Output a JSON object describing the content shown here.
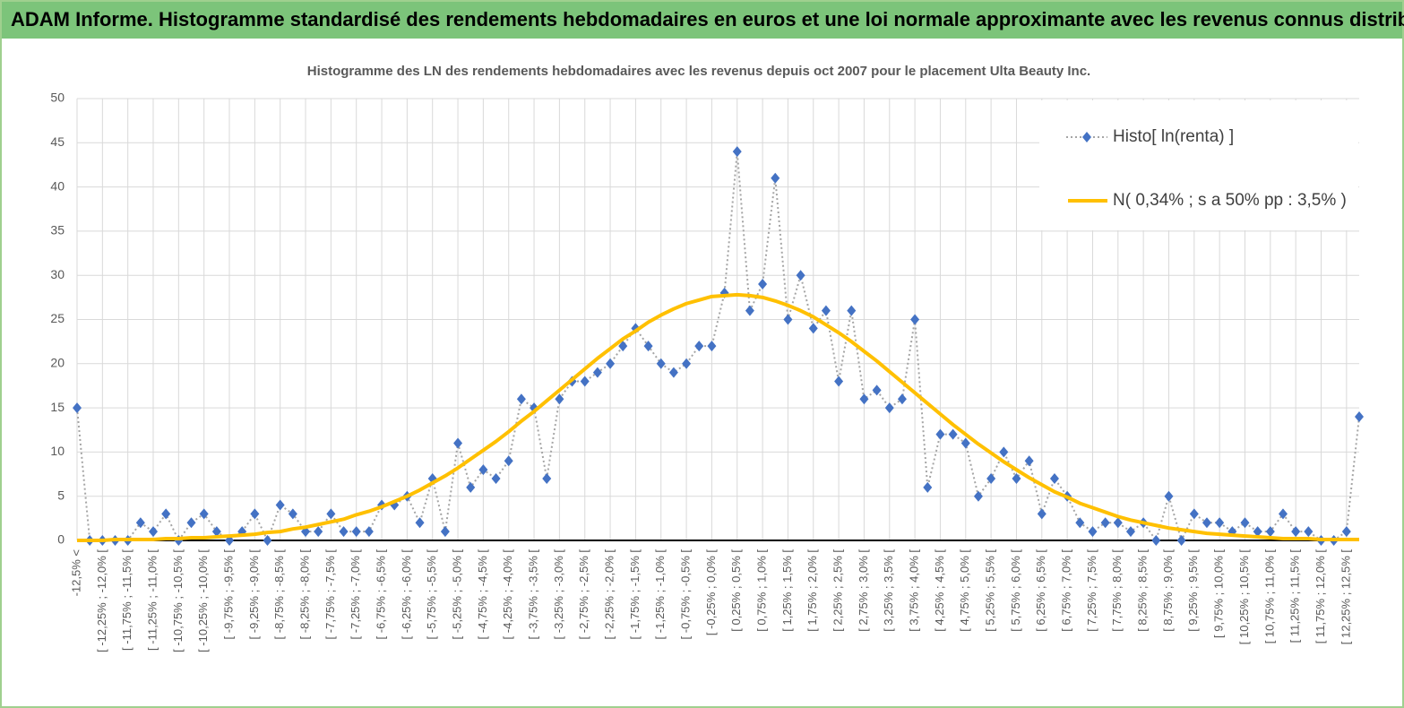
{
  "chart_data": {
    "type": "line",
    "title": "ADAM Informe. Histogramme standardisé des rendements hebdomadaires en euros et une loi normale approximante avec les revenus connus distribués",
    "subtitle": "Histogramme des LN des rendements hebdomadaires avec les revenus depuis oct 2007 pour le placement Ulta Beauty Inc.",
    "categories": [
      "-12,5% <",
      null,
      "[ -12,25% ; -12,0% [",
      null,
      "[ -11,75% ; -11,5% [",
      null,
      "[ -11,25% ; -11,0% [",
      null,
      "[ -10,75% ; -10,5% [",
      null,
      "[ -10,25% ; -10,0% [",
      null,
      "[ -9,75% ; -9,5% [",
      null,
      "[ -9,25% ; -9,0% [",
      null,
      "[ -8,75% ; -8,5% [",
      null,
      "[ -8,25% ; -8,0% [",
      null,
      "[ -7,75% ; -7,5% [",
      null,
      "[ -7,25% ; -7,0% [",
      null,
      "[ -6,75% ; -6,5% [",
      null,
      "[ -6,25% ; -6,0% [",
      null,
      "[ -5,75% ; -5,5% [",
      null,
      "[ -5,25% ; -5,0% [",
      null,
      "[ -4,75% ; -4,5% [",
      null,
      "[ -4,25% ; -4,0% [",
      null,
      "[ -3,75% ; -3,5% [",
      null,
      "[ -3,25% ; -3,0% [",
      null,
      "[ -2,75% ; -2,5% [",
      null,
      "[ -2,25% ; -2,0% [",
      null,
      "[ -1,75% ; -1,5% [",
      null,
      "[ -1,25% ; -1,0% [",
      null,
      "[ -0,75% ; -0,5% [",
      null,
      "[ -0,25% ; 0,0% [",
      null,
      "[ 0,25% ; 0,5% [",
      null,
      "[ 0,75% ; 1,0% [",
      null,
      "[ 1,25% ; 1,5% [",
      null,
      "[ 1,75% ; 2,0% [",
      null,
      "[ 2,25% ; 2,5% [",
      null,
      "[ 2,75% ; 3,0% [",
      null,
      "[ 3,25% ; 3,5% [",
      null,
      "[ 3,75% ; 4,0% [",
      null,
      "[ 4,25% ; 4,5% [",
      null,
      "[ 4,75% ; 5,0% [",
      null,
      "[ 5,25% ; 5,5% [",
      null,
      "[ 5,75% ; 6,0% [",
      null,
      "[ 6,25% ; 6,5% [",
      null,
      "[ 6,75% ; 7,0% [",
      null,
      "[ 7,25% ; 7,5% [",
      null,
      "[ 7,75% ; 8,0% [",
      null,
      "[ 8,25% ; 8,5% [",
      null,
      "[ 8,75% ; 9,0% [",
      null,
      "[ 9,25% ; 9,5% [",
      null,
      "[ 9,75% ; 10,0% [",
      null,
      "[ 10,25% ; 10,5% [",
      null,
      "[ 10,75% ; 11,0% [",
      null,
      "[ 11,25% ; 11,5% [",
      null,
      "[ 11,75% ; 12,0% [",
      null,
      "[ 12,25% ; 12,5% [",
      null
    ],
    "series": [
      {
        "name": "Histo[ ln(renta) ]",
        "color": "#4472c4",
        "line_color": "#a5a5a5",
        "values": [
          15,
          0,
          0,
          0,
          0,
          2,
          1,
          3,
          0,
          2,
          3,
          1,
          0,
          1,
          3,
          0,
          4,
          3,
          1,
          1,
          3,
          1,
          1,
          1,
          4,
          4,
          5,
          2,
          7,
          1,
          11,
          6,
          8,
          7,
          9,
          16,
          15,
          7,
          16,
          18,
          18,
          19,
          20,
          22,
          24,
          22,
          20,
          19,
          20,
          22,
          22,
          28,
          44,
          26,
          29,
          41,
          25,
          30,
          24,
          26,
          18,
          26,
          16,
          17,
          15,
          16,
          25,
          6,
          12,
          12,
          11,
          5,
          7,
          10,
          7,
          9,
          3,
          7,
          5,
          2,
          1,
          2,
          2,
          1,
          2,
          0,
          5,
          0,
          3,
          2,
          2,
          1,
          2,
          1,
          1,
          3,
          1,
          1,
          0,
          0,
          1,
          14
        ]
      },
      {
        "name": "N( 0,34% ; s a 50% pp : 3,5% )",
        "color": "#ffc000",
        "values": [
          0.0,
          0.0,
          0.0,
          0.1,
          0.1,
          0.1,
          0.1,
          0.2,
          0.2,
          0.3,
          0.3,
          0.4,
          0.5,
          0.6,
          0.7,
          0.9,
          1.0,
          1.3,
          1.5,
          1.8,
          2.1,
          2.4,
          2.9,
          3.3,
          3.8,
          4.4,
          5.0,
          5.7,
          6.5,
          7.3,
          8.2,
          9.2,
          10.2,
          11.2,
          12.3,
          13.5,
          14.6,
          15.8,
          17.0,
          18.2,
          19.4,
          20.6,
          21.7,
          22.8,
          23.7,
          24.7,
          25.5,
          26.2,
          26.8,
          27.2,
          27.6,
          27.7,
          27.8,
          27.7,
          27.5,
          27.1,
          26.6,
          26.0,
          25.3,
          24.4,
          23.5,
          22.5,
          21.4,
          20.3,
          19.1,
          17.9,
          16.7,
          15.5,
          14.3,
          13.1,
          12.0,
          10.9,
          9.9,
          8.9,
          8.0,
          7.1,
          6.3,
          5.5,
          4.9,
          4.2,
          3.7,
          3.2,
          2.7,
          2.3,
          2.0,
          1.7,
          1.4,
          1.2,
          1.0,
          0.8,
          0.7,
          0.6,
          0.5,
          0.4,
          0.3,
          0.2,
          0.2,
          0.2,
          0.1,
          0.1,
          0.1,
          0.1
        ]
      }
    ],
    "ylim": [
      0,
      50
    ],
    "yticks": [
      0,
      5,
      10,
      15,
      20,
      25,
      30,
      35,
      40,
      45,
      50
    ],
    "grid": true,
    "legend": "top-right"
  }
}
